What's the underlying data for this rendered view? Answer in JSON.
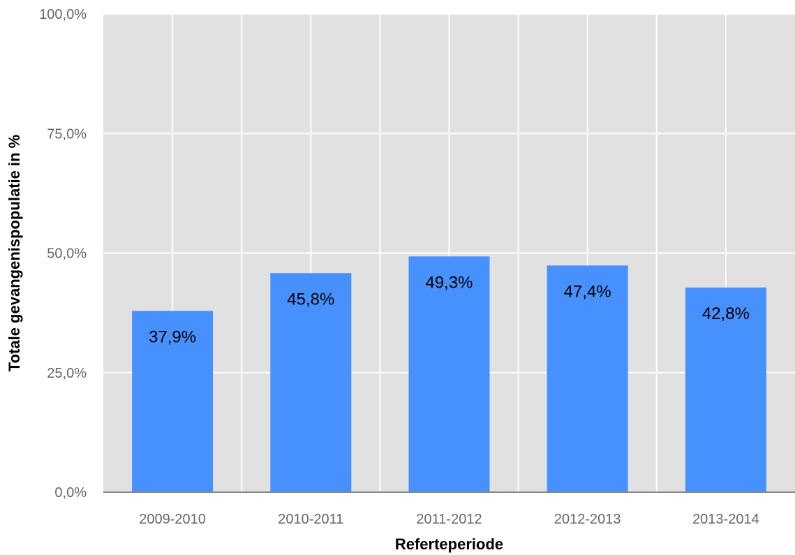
{
  "chart_data": {
    "type": "bar",
    "categories": [
      "2009-2010",
      "2010-2011",
      "2011-2012",
      "2012-2013",
      "2013-2014"
    ],
    "values": [
      37.9,
      45.8,
      49.3,
      47.4,
      42.8
    ],
    "data_labels": [
      "37,9%",
      "45,8%",
      "49,3%",
      "47,4%",
      "42,8%"
    ],
    "xlabel": "Referteperiode",
    "ylabel": "Totale gevangenispopulatie in %",
    "ylim": [
      0,
      100
    ],
    "yticks": [
      0,
      25,
      50,
      75,
      100
    ],
    "ytick_labels": [
      "0,0%",
      "25,0%",
      "50,0%",
      "75,0%",
      "100,0%"
    ],
    "grid": true,
    "legend": "none",
    "colors": {
      "bar": "#4791ff",
      "plot_background": "#e1e1e1",
      "grid": "#ffffff",
      "axis_line": "#888888"
    }
  }
}
